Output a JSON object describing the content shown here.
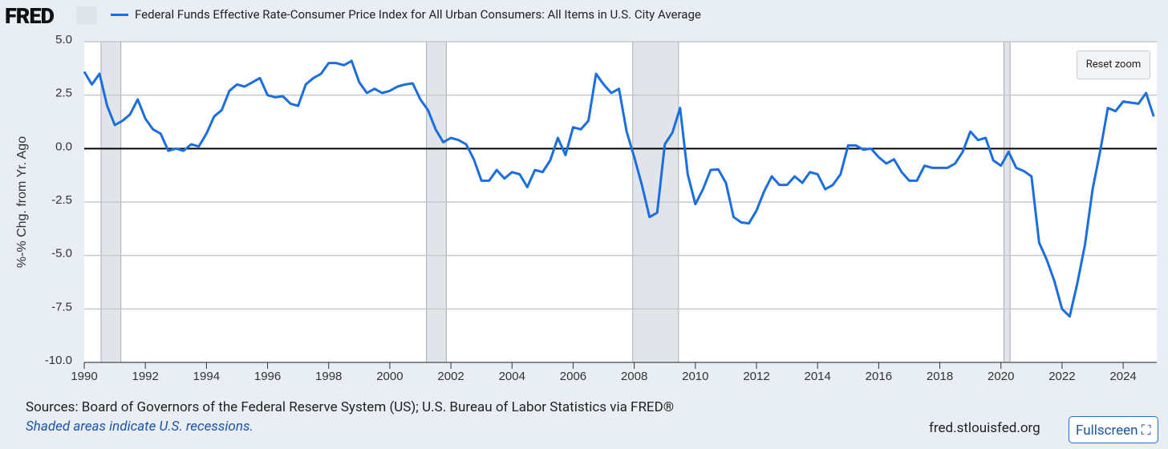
{
  "logo": "FRED",
  "sources": "Sources: Board of Governors of the Federal Reserve System (US); U.S. Bureau of Labor Statistics via FRED®",
  "note": "Shaded areas indicate U.S. recessions.",
  "site": "fred.stlouisfed.org",
  "buttons": {
    "reset": "Reset zoom",
    "fullscreen": "Fullscreen"
  },
  "chart_data": {
    "type": "line",
    "ylabel": "%-% Chg. from Yr. Ago",
    "xlim": [
      1990,
      2025.1
    ],
    "xticks": [
      1990,
      1992,
      1994,
      1996,
      1998,
      2000,
      2002,
      2004,
      2006,
      2008,
      2010,
      2012,
      2014,
      2016,
      2018,
      2020,
      2022,
      2024
    ],
    "ylim": [
      -10,
      5
    ],
    "yticks": [
      {
        "value": 5,
        "label": "5.0"
      },
      {
        "value": 2.5,
        "label": "2.5"
      },
      {
        "value": 0,
        "label": "0.0"
      },
      {
        "value": -2.5,
        "label": "-2.5"
      },
      {
        "value": -5,
        "label": "-5.0"
      },
      {
        "value": -7.5,
        "label": "-7.5"
      },
      {
        "value": -10,
        "label": "-10.0"
      }
    ],
    "grid": true,
    "recessions": [
      [
        1990.55,
        1991.2
      ],
      [
        2001.2,
        2001.85
      ],
      [
        2007.95,
        2009.45
      ],
      [
        2020.1,
        2020.3
      ]
    ],
    "x": [
      1990,
      1990.25,
      1990.5,
      1990.75,
      1991,
      1991.25,
      1991.5,
      1991.75,
      1992,
      1992.25,
      1992.5,
      1992.75,
      1993,
      1993.25,
      1993.5,
      1993.75,
      1994,
      1994.25,
      1994.5,
      1994.75,
      1995,
      1995.25,
      1995.5,
      1995.75,
      1996,
      1996.25,
      1996.5,
      1996.75,
      1997,
      1997.25,
      1997.5,
      1997.75,
      1998,
      1998.25,
      1998.5,
      1998.75,
      1999,
      1999.25,
      1999.5,
      1999.75,
      2000,
      2000.25,
      2000.5,
      2000.75,
      2001,
      2001.25,
      2001.5,
      2001.75,
      2002,
      2002.25,
      2002.5,
      2002.75,
      2003,
      2003.25,
      2003.5,
      2003.75,
      2004,
      2004.25,
      2004.5,
      2004.75,
      2005,
      2005.25,
      2005.5,
      2005.75,
      2006,
      2006.25,
      2006.5,
      2006.75,
      2007,
      2007.25,
      2007.5,
      2007.75,
      2008,
      2008.25,
      2008.5,
      2008.75,
      2009,
      2009.25,
      2009.5,
      2009.75,
      2010,
      2010.25,
      2010.5,
      2010.75,
      2011,
      2011.25,
      2011.5,
      2011.75,
      2012,
      2012.25,
      2012.5,
      2012.75,
      2013,
      2013.25,
      2013.5,
      2013.75,
      2014,
      2014.25,
      2014.5,
      2014.75,
      2015,
      2015.25,
      2015.5,
      2015.75,
      2016,
      2016.25,
      2016.5,
      2016.75,
      2017,
      2017.25,
      2017.5,
      2017.75,
      2018,
      2018.25,
      2018.5,
      2018.75,
      2019,
      2019.25,
      2019.5,
      2019.75,
      2020,
      2020.25,
      2020.5,
      2020.75,
      2021,
      2021.25,
      2021.5,
      2021.75,
      2022,
      2022.25,
      2022.5,
      2022.75,
      2023,
      2023.25,
      2023.5,
      2023.75,
      2024,
      2024.25,
      2024.5,
      2024.75,
      2025
    ],
    "series": [
      {
        "name": "Federal Funds Effective Rate-Consumer Price Index for All Urban Consumers: All Items in U.S. City Average",
        "color": "#1a6ee0",
        "values": [
          3.6,
          3.0,
          3.5,
          2.0,
          1.1,
          1.3,
          1.6,
          2.3,
          1.4,
          0.9,
          0.7,
          -0.1,
          0.0,
          -0.1,
          0.2,
          0.1,
          0.7,
          1.5,
          1.8,
          2.7,
          3.0,
          2.9,
          3.1,
          3.3,
          2.5,
          2.4,
          2.45,
          2.1,
          2.0,
          3.0,
          3.3,
          3.5,
          4.0,
          4.0,
          3.9,
          4.1,
          3.1,
          2.6,
          2.8,
          2.6,
          2.7,
          2.9,
          3.0,
          3.05,
          2.3,
          1.8,
          0.9,
          0.3,
          0.5,
          0.4,
          0.2,
          -0.5,
          -1.5,
          -1.5,
          -1.0,
          -1.4,
          -1.1,
          -1.2,
          -1.8,
          -1.0,
          -1.1,
          -0.55,
          0.5,
          -0.3,
          1.0,
          0.9,
          1.3,
          3.5,
          3.0,
          2.6,
          2.8,
          0.8,
          -0.4,
          -1.7,
          -3.2,
          -3.0,
          0.2,
          0.75,
          1.9,
          -1.2,
          -2.6,
          -1.9,
          -1.0,
          -0.97,
          -1.6,
          -3.2,
          -3.45,
          -3.5,
          -2.9,
          -2.0,
          -1.3,
          -1.7,
          -1.7,
          -1.3,
          -1.6,
          -1.1,
          -1.2,
          -1.9,
          -1.7,
          -1.2,
          0.15,
          0.15,
          -0.05,
          0.0,
          -0.4,
          -0.7,
          -0.5,
          -1.1,
          -1.5,
          -1.5,
          -0.8,
          -0.9,
          -0.9,
          -0.9,
          -0.7,
          -0.15,
          0.8,
          0.4,
          0.5,
          -0.55,
          -0.8,
          -0.15,
          -0.9,
          -1.05,
          -1.3,
          -4.4,
          -5.2,
          -6.2,
          -7.5,
          -7.85,
          -6.3,
          -4.5,
          -1.9,
          -0.1,
          1.9,
          1.75,
          2.2,
          2.15,
          2.1,
          2.6,
          1.5
        ]
      }
    ]
  }
}
